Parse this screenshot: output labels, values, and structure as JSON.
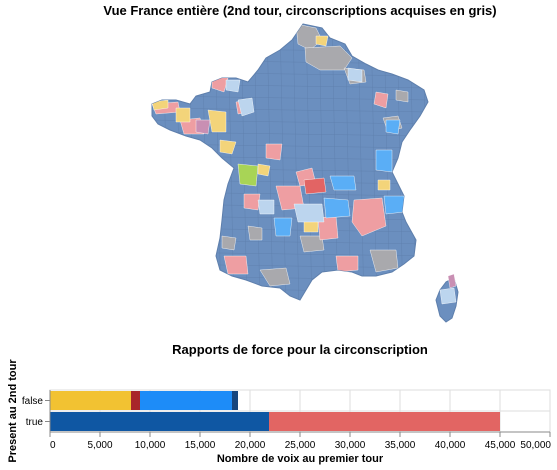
{
  "map": {
    "title": "Vue France entière (2nd tour, circonscriptions acquises en gris)",
    "regions": [
      "france-metropolitaine",
      "corse"
    ],
    "colors": {
      "land": "#6b8fbf",
      "acquired": "#a9a9ad",
      "pink": "#ee9ea2",
      "yellow": "#f3d47a",
      "light_blue": "#bcd5ee",
      "bright_blue": "#5aaef6",
      "purple": "#c98fb3",
      "green": "#a8d456",
      "red": "#e26464",
      "border": "#5e7fac"
    }
  },
  "chart": {
    "title": "Rapports de force pour la circonscription"
  },
  "chart_data": {
    "type": "bar",
    "orientation": "horizontal",
    "stacked": true,
    "title": "Rapports de force pour la circonscription",
    "xlabel": "Nombre de voix au premier tour",
    "ylabel": "Present au 2nd tour",
    "categories": [
      "false",
      "true"
    ],
    "xlim": [
      0,
      50000
    ],
    "xticks": [
      "0",
      "5,000",
      "10,000",
      "15,000",
      "20,000",
      "25,000",
      "30,000",
      "35,000",
      "40,000",
      "45,000",
      "50,000"
    ],
    "grid": true,
    "series": [
      {
        "category": "false",
        "segments": [
          {
            "value": 8100,
            "color": "#f2c232"
          },
          {
            "value": 900,
            "color": "#a8262a"
          },
          {
            "value": 9200,
            "color": "#1d8cf8"
          },
          {
            "value": 600,
            "color": "#17467e"
          }
        ]
      },
      {
        "category": "true",
        "segments": [
          {
            "value": 21900,
            "color": "#0f57a3"
          },
          {
            "value": 23100,
            "color": "#e26563"
          }
        ]
      }
    ]
  }
}
